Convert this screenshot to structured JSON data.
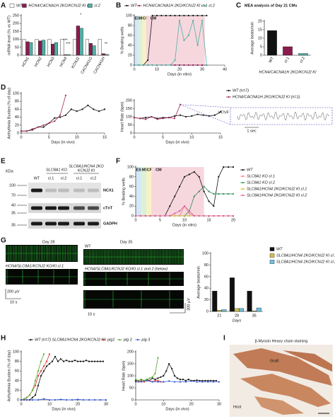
{
  "chart_data": [
    {
      "type": "bar",
      "panel": "A",
      "ylabel": "mRNA level (% vs WT)",
      "categories": [
        "HCN1",
        "HCN2",
        "HCN3",
        "HCN4",
        "KCNJ2",
        "CACNA1G",
        "CACNA1H"
      ],
      "series": [
        {
          "name": "WT",
          "color": "#ffffff",
          "values": [
            100,
            100,
            100,
            100,
            100,
            100,
            100
          ]
        },
        {
          "name": "HCN4/CACNA1H 2KO/KCNJ2 KI cl.1",
          "color": "#8b1c4e",
          "values": [
            85,
            90,
            70,
            3,
            185,
            75,
            10
          ]
        },
        {
          "name": "cl.2",
          "color": "#4fb0a5",
          "values": [
            80,
            95,
            80,
            4,
            170,
            60,
            5
          ]
        }
      ],
      "ylim": [
        0,
        250
      ],
      "yticks": [
        0,
        50,
        100,
        150,
        200,
        250
      ],
      "annotations": [
        "***",
        "***",
        "*",
        "**"
      ]
    },
    {
      "type": "line",
      "panel": "B",
      "ylabel": "% Beating wells",
      "xlabel": "Days (in vitro)",
      "phases": [
        "ES",
        "MS",
        "CP",
        "CM"
      ],
      "x": [
        0,
        2,
        4,
        6,
        8,
        10,
        12,
        14,
        16,
        18,
        20,
        22,
        24,
        26,
        28,
        30,
        32
      ],
      "series": [
        {
          "name": "WT",
          "color": "#111111",
          "values": [
            0,
            0,
            0,
            10,
            100,
            100,
            100,
            100,
            100,
            100,
            100,
            100,
            100,
            100,
            100,
            100,
            100
          ]
        },
        {
          "name": "HCN4/CACNA1H 2KO/KCNJ2 KI cl.1",
          "color": "#8b1c4e",
          "values": [
            0,
            0,
            0,
            0,
            0,
            0,
            0,
            0,
            0,
            0,
            0,
            0,
            0,
            0,
            0,
            0,
            0
          ]
        },
        {
          "name": "cl.2",
          "color": "#4fb0a5",
          "values": [
            0,
            0,
            0,
            0,
            0,
            0,
            0,
            0,
            0,
            10,
            90,
            50,
            60,
            90,
            40,
            90,
            0
          ]
        }
      ],
      "xlim": [
        0,
        40
      ],
      "xticks": [
        0,
        10,
        20,
        30,
        40
      ],
      "ylim": [
        0,
        100
      ],
      "yticks": [
        0,
        20,
        40,
        60,
        80,
        100
      ]
    },
    {
      "type": "bar",
      "panel": "C",
      "title": "MEA analysis of Day 21 CMs",
      "ylabel": "Average beats/min",
      "xlabel": "HCN4/CACNA1H 2KO/KCNJ2 KI",
      "categories": [
        "WT",
        "cl.1",
        "cl.2"
      ],
      "values": [
        14.5,
        5,
        1
      ],
      "colors": [
        "#111111",
        "#8b1c4e",
        "#4fb0a5"
      ],
      "ylim": [
        0,
        20
      ],
      "yticks": [
        0,
        5,
        10,
        15,
        20
      ]
    },
    {
      "type": "line",
      "panel": "D",
      "ylabel": "Arrhythmia Burden (% of day)",
      "xlabel": "Days (in vivo)",
      "series": [
        {
          "color": "#111111",
          "x": [
            0,
            1,
            2,
            3,
            4,
            5,
            6,
            7,
            8,
            9,
            10,
            11,
            12,
            13,
            14,
            15
          ],
          "values": [
            5,
            5,
            8,
            15,
            15,
            25,
            38,
            40,
            45,
            60,
            55,
            60,
            70,
            60,
            55,
            60
          ]
        },
        {
          "color": "#a0285a",
          "x": [
            0,
            1,
            2,
            3,
            4,
            5,
            6,
            7,
            8
          ],
          "values": [
            5,
            5,
            10,
            15,
            20,
            25,
            30,
            45,
            95
          ]
        }
      ],
      "xlim": [
        0,
        15
      ],
      "xticks": [
        0,
        5,
        10,
        15
      ],
      "ylim": [
        0,
        100
      ],
      "yticks": [
        0,
        20,
        40,
        60,
        80,
        100
      ]
    },
    {
      "type": "line",
      "ylabel": "Heart Rate (bpm)",
      "xlabel": "Days (in vivo)",
      "inset_label": "VT/VF",
      "inset_scale": "1 sec",
      "series": [
        {
          "name": "WT (n=7)",
          "color": "#111111",
          "x": [
            0,
            1,
            2,
            3,
            4,
            5,
            6,
            7,
            8,
            9,
            10,
            11,
            12,
            13,
            14,
            15
          ],
          "values": [
            95,
            90,
            95,
            100,
            90,
            95,
            95,
            105,
            110,
            100,
            105,
            115,
            110,
            105,
            110,
            130
          ]
        },
        {
          "name": "HCN4/CACNA1H 2KO/KCNJ2 KI (n=1)",
          "color": "#a0285a",
          "x": [
            0,
            1,
            2,
            3,
            4,
            5,
            6,
            7,
            8
          ],
          "values": [
            95,
            90,
            85,
            100,
            85,
            90,
            95,
            90,
            175
          ]
        }
      ],
      "xlim": [
        0,
        15
      ],
      "xticks": [
        0,
        5,
        10,
        15
      ],
      "ylim": [
        0,
        200
      ],
      "yticks": [
        0,
        50,
        100,
        150,
        200
      ]
    },
    {
      "type": "line",
      "panel": "F",
      "ylabel": "% Beating wells",
      "xlabel": "Days (in vitro)",
      "phases": [
        "ES",
        "MS",
        "CP",
        "CM"
      ],
      "x": [
        0,
        1,
        2,
        3,
        4,
        5,
        6,
        7,
        8,
        9,
        10,
        11,
        12,
        13,
        14,
        15,
        16,
        17,
        18,
        19,
        20
      ],
      "series": [
        {
          "name": "WT",
          "color": "#111111",
          "values": [
            0,
            0,
            0,
            0,
            0,
            0,
            0,
            20,
            40,
            60,
            80,
            85,
            90,
            80,
            50,
            30,
            20,
            80,
            100,
            100,
            100
          ]
        },
        {
          "name": "SLC8A1 KO cl.1",
          "color": "#f07f7a",
          "values": [
            0,
            0,
            0,
            0,
            0,
            0,
            0,
            0,
            0,
            0,
            20,
            5,
            0,
            0,
            0,
            0,
            0,
            0,
            0,
            0,
            0
          ]
        },
        {
          "name": "SLC8A1 KO cl.2",
          "color": "#2f8a5a",
          "values": [
            0,
            0,
            0,
            0,
            0,
            0,
            0,
            0,
            0,
            0,
            0,
            10,
            40,
            50,
            60,
            50,
            45,
            45,
            45,
            45,
            45
          ]
        },
        {
          "name": "SLC8A1/HCN4 2KO/KCNJ2 KI cl.1",
          "color": "#d9b93c",
          "values": [
            0,
            0,
            0,
            0,
            0,
            0,
            0,
            0,
            0,
            0,
            0,
            0,
            0,
            0,
            0,
            0,
            0,
            0,
            0,
            0,
            0
          ]
        },
        {
          "name": "SLC8A1/HCN4 2KO/KCNJ2 KI cl.2",
          "color": "#d9559a",
          "values": [
            0,
            0,
            0,
            0,
            0,
            0,
            0,
            0,
            5,
            10,
            20,
            10,
            0,
            0,
            0,
            0,
            0,
            0,
            0,
            0,
            0
          ]
        }
      ],
      "xlim": [
        0,
        20
      ],
      "xticks": [
        0,
        5,
        10,
        15,
        20
      ],
      "ylim": [
        0,
        100
      ],
      "yticks": [
        0,
        20,
        40,
        60,
        80,
        100
      ]
    },
    {
      "type": "bar",
      "ylabel": "Average beats/min",
      "xlabel": "Days",
      "categories": [
        "21",
        "28",
        "35"
      ],
      "series": [
        {
          "name": "WT",
          "color": "#111111",
          "values": [
            35,
            58,
            35
          ]
        },
        {
          "name": "SLC8A1/HCN4 2KO/KCNJ2 KI cl.1",
          "color": "#d4c24a",
          "values": [
            2,
            5,
            1
          ]
        },
        {
          "name": "SLC8A1/HCN4 2KO/KCNJ2 KI cl.2",
          "color": "#6cc3e6",
          "values": [
            3,
            5,
            6
          ]
        }
      ],
      "ylim": [
        0,
        100
      ],
      "yticks": [
        0,
        20,
        40,
        60,
        80,
        100
      ]
    },
    {
      "type": "line",
      "panel": "H",
      "ylabel": "Arrhythmia Burden (% of day)",
      "xlabel": "Days (in vivo)",
      "legend_title": "SLC8A1/HCN4 2KO/KCNJ2 KI:",
      "series": [
        {
          "name": "WT (n=7)",
          "color": "#111111",
          "x": [
            0,
            1,
            2,
            3,
            4,
            5,
            6,
            7,
            8,
            9,
            10,
            11,
            12,
            13,
            14,
            15,
            16,
            17,
            18,
            19,
            20,
            21,
            22,
            23,
            24,
            25,
            26,
            27,
            28,
            29
          ],
          "values": [
            0,
            0,
            0,
            0,
            5,
            10,
            30,
            50,
            60,
            70,
            75,
            80,
            90,
            80,
            85,
            80,
            82,
            80,
            80,
            82,
            80,
            80,
            80,
            82,
            80,
            80,
            80,
            80,
            80,
            80
          ]
        },
        {
          "name": "pig1",
          "color": "#e0322f",
          "x": [
            0,
            1,
            2,
            3,
            4,
            5,
            6,
            7,
            8,
            9,
            10
          ],
          "values": [
            0,
            0,
            5,
            10,
            20,
            30,
            50,
            60,
            70,
            80,
            95
          ]
        },
        {
          "name": "pig 2",
          "color": "#5aa832",
          "x": [
            0,
            1,
            2,
            3,
            4,
            5,
            6,
            7,
            8
          ],
          "values": [
            0,
            2,
            5,
            10,
            20,
            40,
            60,
            80,
            95
          ]
        },
        {
          "name": "pig 3",
          "color": "#2f55d4",
          "x": [
            0,
            2,
            4,
            6,
            8,
            10,
            12,
            14,
            16,
            18,
            20,
            22,
            24,
            26,
            28,
            30
          ],
          "values": [
            0,
            0,
            0,
            0,
            2,
            0,
            0,
            1,
            0,
            0,
            1,
            0,
            0,
            0,
            0,
            0
          ]
        }
      ],
      "xlim": [
        0,
        30
      ],
      "xticks": [
        0,
        10,
        20,
        30
      ],
      "ylim": [
        0,
        100
      ],
      "yticks": [
        0,
        20,
        40,
        60,
        80,
        100
      ]
    },
    {
      "type": "line",
      "ylabel": "Heart Rate (bpm)",
      "xlabel": "Days (in vivo)",
      "series": [
        {
          "color": "#111111",
          "x": [
            0,
            1,
            2,
            3,
            4,
            5,
            6,
            7,
            8,
            9,
            10,
            11,
            12,
            13,
            14,
            15,
            16,
            17,
            18,
            19,
            20,
            21,
            22,
            23,
            24,
            25,
            26,
            27,
            28,
            29
          ],
          "values": [
            80,
            80,
            85,
            80,
            85,
            80,
            90,
            85,
            90,
            95,
            100,
            120,
            150,
            130,
            100,
            90,
            85,
            85,
            80,
            85,
            80,
            80,
            82,
            80,
            80,
            80,
            80,
            80,
            80,
            80
          ]
        },
        {
          "color": "#e0322f",
          "x": [
            0,
            1,
            2,
            3,
            4,
            5,
            6,
            7,
            8,
            9,
            10
          ],
          "values": [
            75,
            75,
            80,
            75,
            80,
            80,
            75,
            80,
            80,
            75,
            75
          ]
        },
        {
          "color": "#5aa832",
          "x": [
            0,
            1,
            2,
            3,
            4,
            5,
            6,
            7,
            8
          ],
          "values": [
            85,
            80,
            85,
            80,
            85,
            90,
            95,
            110,
            175
          ]
        },
        {
          "color": "#2f55d4",
          "x": [
            0,
            2,
            4,
            6,
            8,
            10,
            12,
            14,
            16,
            18,
            20,
            22,
            24,
            26,
            28,
            30
          ],
          "values": [
            75,
            75,
            80,
            75,
            75,
            75,
            78,
            75,
            75,
            75,
            78,
            75,
            75,
            75,
            75,
            75
          ]
        }
      ],
      "xlim": [
        0,
        30
      ],
      "xticks": [
        0,
        10,
        20,
        30
      ],
      "ylim": [
        0,
        200
      ],
      "yticks": [
        0,
        50,
        100,
        150,
        200
      ]
    }
  ],
  "panel_e": {
    "panel": "E",
    "unit": "KDa",
    "group_labels": [
      "SLC8A1 KO",
      "SLC8A1/HCN4 2KO",
      "KCNJ2 KI"
    ],
    "lanes": [
      "WT",
      "cl.1",
      "cl.2",
      "cl.1",
      "cl.2"
    ],
    "markers": [
      100,
      70,
      40,
      35,
      35
    ],
    "bands": [
      "NCX1",
      "cTnT",
      "GADPH"
    ]
  },
  "panel_g": {
    "panel": "G",
    "days": [
      "Day 28",
      "Day 35"
    ],
    "traces": [
      "WT",
      "HCN4/SLC8A1/KCNJ2 KO/KI cl.1",
      "WT",
      "HCN4/SLC8A1/KCNJ2 KO/KI cl.1 and 2 (below)"
    ],
    "scales": [
      "200 µV",
      "10 s",
      "200 µV",
      "10 s"
    ]
  },
  "panel_i": {
    "panel": "I",
    "title": "β-Myosin Heavy chain staining",
    "labels": [
      "Graft",
      "Host"
    ]
  }
}
